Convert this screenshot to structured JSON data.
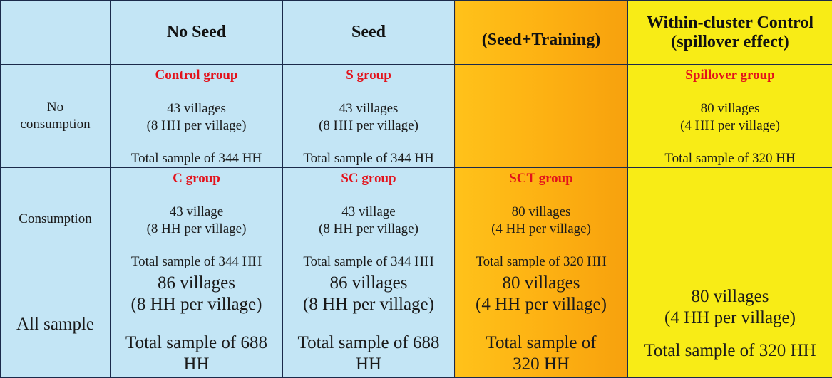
{
  "colors": {
    "blue": "#c3e5f5",
    "orange": "#fdb012",
    "yellow": "#f8ec16",
    "group_label_red": "#e3121b",
    "border": "#1b2a4a"
  },
  "header": {
    "col1": "No Seed",
    "col2": "Seed",
    "col3": "(Seed+Training)",
    "col4": "Within-cluster Control (spillover effect)"
  },
  "rows": [
    {
      "label": "No consumption",
      "cells": [
        {
          "group": "Control group",
          "villages": "43 villages",
          "hh": "(8 HH per village)",
          "total": "Total sample of 344 HH"
        },
        {
          "group": "S group",
          "villages": "43 villages",
          "hh": "(8 HH per village)",
          "total": "Total sample of 344 HH"
        },
        {
          "group": "",
          "villages": "",
          "hh": "",
          "total": ""
        },
        {
          "group": "Spillover group",
          "villages": "80 villages",
          "hh": "(4 HH per village)",
          "total": "Total sample of 320 HH"
        }
      ]
    },
    {
      "label": "Consumption",
      "cells": [
        {
          "group": "C group",
          "villages": "43 village",
          "hh": "(8 HH per village)",
          "total": "Total sample of 344 HH"
        },
        {
          "group": "SC group",
          "villages": "43 village",
          "hh": "(8 HH per village)",
          "total": "Total sample of 344 HH"
        },
        {
          "group": "SCT group",
          "villages": "80 villages",
          "hh": "(4 HH per village)",
          "total": "Total sample of 320 HH"
        },
        {
          "group": "",
          "villages": "",
          "hh": "",
          "total": ""
        }
      ]
    },
    {
      "label": "All sample",
      "cells": [
        {
          "villages": "86 villages",
          "hh": "(8 HH per village)",
          "total": "Total sample of 688 HH"
        },
        {
          "villages": "86 villages",
          "hh": "(8 HH per village)",
          "total": "Total sample of 688 HH"
        },
        {
          "villages": "80 villages",
          "hh": "(4 HH per village)",
          "total": "Total sample of 320 HH"
        },
        {
          "villages": "80 villages",
          "hh": "(4 HH per village)",
          "total": "Total sample of 320 HH"
        }
      ]
    }
  ]
}
